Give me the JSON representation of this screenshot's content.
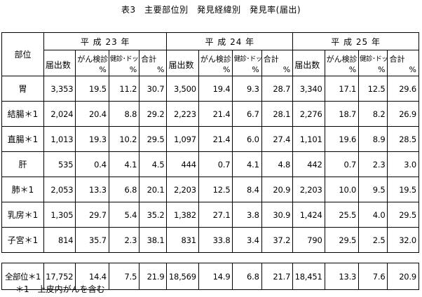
{
  "title": "表3　主要部位別　発見経緯別　発見率(届出)",
  "header": {
    "part_label": "部位",
    "years": [
      "平 成 23 年",
      "平 成 24 年",
      "平 成 25 年"
    ],
    "columns": {
      "count": "届出数",
      "cancer_screening": "がん検診",
      "checkup_dock": "健診･ドック",
      "total": "合計",
      "pct": "%"
    }
  },
  "rows": [
    {
      "part": "胃",
      "y23": [
        "3,353",
        "19.5",
        "11.2",
        "30.7"
      ],
      "y24": [
        "3,500",
        "19.4",
        "9.3",
        "28.7"
      ],
      "y25": [
        "3,340",
        "17.1",
        "12.5",
        "29.6"
      ]
    },
    {
      "part": "結腸＊1",
      "y23": [
        "2,024",
        "20.4",
        "8.8",
        "29.2"
      ],
      "y24": [
        "2,223",
        "21.4",
        "6.7",
        "28.1"
      ],
      "y25": [
        "2,276",
        "18.7",
        "8.2",
        "26.9"
      ]
    },
    {
      "part": "直腸＊1",
      "y23": [
        "1,013",
        "19.3",
        "10.2",
        "29.5"
      ],
      "y24": [
        "1,097",
        "21.4",
        "6.0",
        "27.4"
      ],
      "y25": [
        "1,101",
        "19.6",
        "8.9",
        "28.5"
      ]
    },
    {
      "part": "肝",
      "y23": [
        "535",
        "0.4",
        "4.1",
        "4.5"
      ],
      "y24": [
        "444",
        "0.7",
        "4.1",
        "4.8"
      ],
      "y25": [
        "442",
        "0.7",
        "2.3",
        "3.0"
      ]
    },
    {
      "part": "肺＊1",
      "y23": [
        "2,053",
        "13.3",
        "6.8",
        "20.1"
      ],
      "y24": [
        "2,203",
        "12.5",
        "8.4",
        "20.9"
      ],
      "y25": [
        "2,203",
        "10.0",
        "9.5",
        "19.5"
      ]
    },
    {
      "part": "乳房＊1",
      "y23": [
        "1,305",
        "29.7",
        "5.4",
        "35.2"
      ],
      "y24": [
        "1,382",
        "27.1",
        "3.8",
        "30.9"
      ],
      "y25": [
        "1,424",
        "25.5",
        "4.0",
        "29.5"
      ]
    },
    {
      "part": "子宮＊1",
      "y23": [
        "814",
        "35.7",
        "2.3",
        "38.1"
      ],
      "y24": [
        "831",
        "33.8",
        "3.4",
        "37.2"
      ],
      "y25": [
        "790",
        "29.5",
        "2.5",
        "32.0"
      ]
    }
  ],
  "total_row": {
    "part": "全部位＊1",
    "y23": [
      "17,752",
      "14.4",
      "7.5",
      "21.9"
    ],
    "y24": [
      "18,569",
      "14.9",
      "6.8",
      "21.7"
    ],
    "y25": [
      "18,451",
      "13.3",
      "7.6",
      "20.9"
    ]
  },
  "footnote": "＊1　上皮内がんを含む"
}
